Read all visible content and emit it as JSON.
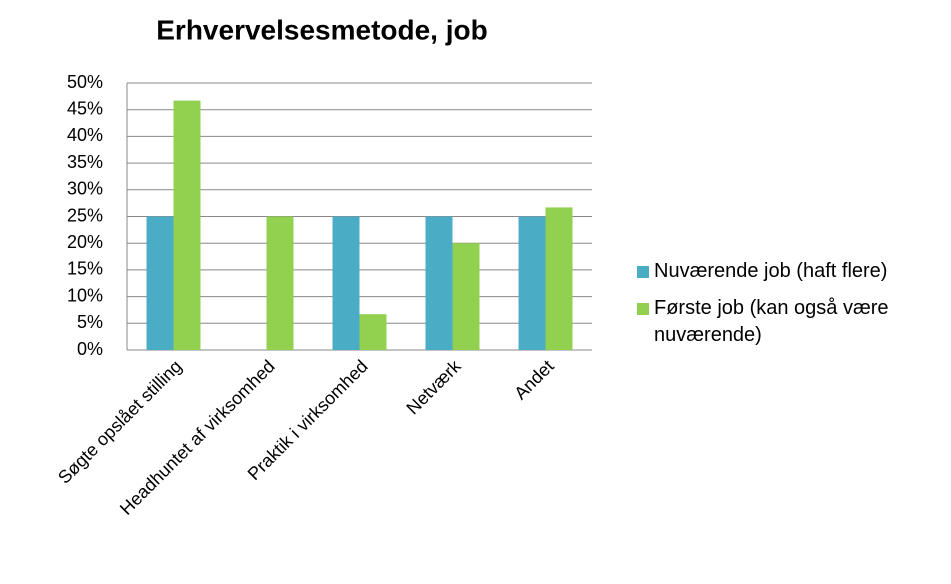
{
  "chart_data": {
    "type": "bar",
    "title": "Erhvervelsesmetode, job",
    "categories": [
      "Søgte opslået stilling",
      "Headhuntet af virksomhed",
      "Praktik i virksomhed",
      "Netværk",
      "Andet"
    ],
    "series": [
      {
        "name": "Nuværende job (haft flere)",
        "color": "#4bacc6",
        "values": [
          25,
          0,
          25,
          25,
          25
        ]
      },
      {
        "name": "Første job (kan også være nuværende)",
        "color": "#92d050",
        "values": [
          46.7,
          25,
          6.7,
          20,
          26.7
        ]
      }
    ],
    "ylim": [
      0,
      50
    ],
    "yticks": [
      {
        "value": 0,
        "label": "0%"
      },
      {
        "value": 5,
        "label": "5%"
      },
      {
        "value": 10,
        "label": "10%"
      },
      {
        "value": 15,
        "label": "15%"
      },
      {
        "value": 20,
        "label": "20%"
      },
      {
        "value": 25,
        "label": "25%"
      },
      {
        "value": 30,
        "label": "30%"
      },
      {
        "value": 35,
        "label": "35%"
      },
      {
        "value": 40,
        "label": "40%"
      },
      {
        "value": 45,
        "label": "45%"
      },
      {
        "value": 50,
        "label": "50%"
      }
    ],
    "grid": true,
    "legend": "right"
  }
}
